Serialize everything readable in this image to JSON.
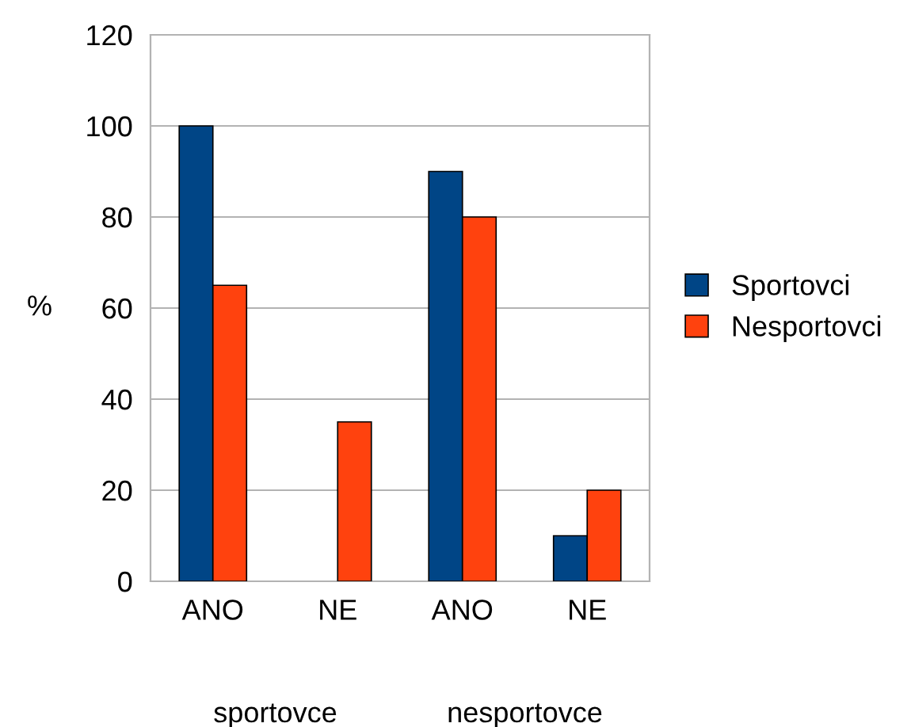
{
  "chart_data": {
    "type": "bar",
    "categories": [
      "ANO",
      "NE",
      "ANO",
      "NE"
    ],
    "series": [
      {
        "name": "Sportovci",
        "color": "#004586",
        "values": [
          100,
          0,
          90,
          10
        ]
      },
      {
        "name": "Nesportovci",
        "color": "#ff420e",
        "values": [
          65,
          35,
          80,
          20
        ]
      }
    ],
    "ylabel": "%",
    "ylim": [
      0,
      120
    ],
    "yticks": [
      0,
      20,
      40,
      60,
      80,
      100,
      120
    ],
    "grid": "y",
    "legend": "right",
    "annotations": [
      "sportovce",
      "nesportovce"
    ]
  }
}
